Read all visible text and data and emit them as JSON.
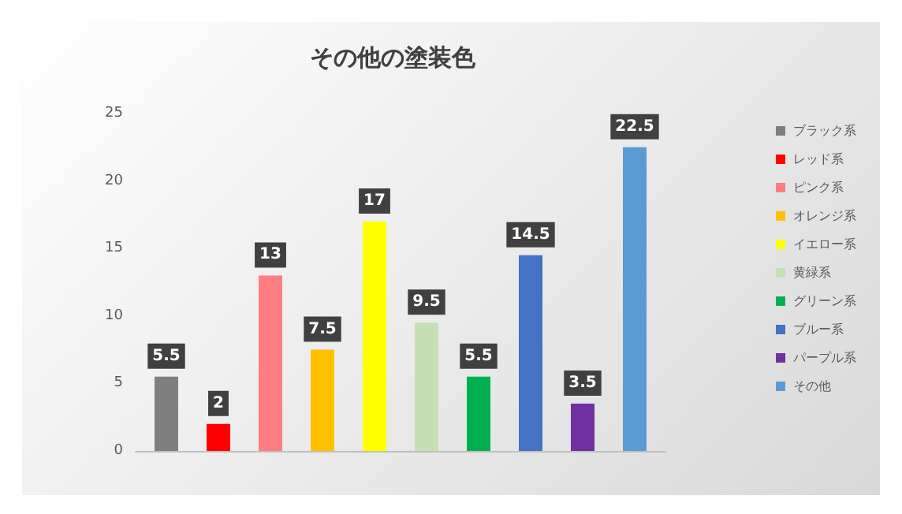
{
  "chart_data": {
    "type": "bar",
    "title": "その他の塗装色",
    "categories": [
      null
    ],
    "series": [
      {
        "name": "ブラック系",
        "color": "#7f7f7f",
        "values": [
          5.5
        ]
      },
      {
        "name": "レッド系",
        "color": "#ff0000",
        "values": [
          2
        ]
      },
      {
        "name": "ピンク系",
        "color": "#ff7c80",
        "values": [
          13
        ]
      },
      {
        "name": "オレンジ系",
        "color": "#ffc000",
        "values": [
          7.5
        ]
      },
      {
        "name": "イエロー系",
        "color": "#ffff00",
        "values": [
          17
        ]
      },
      {
        "name": "黄緑系",
        "color": "#c5e0b4",
        "values": [
          9.5
        ]
      },
      {
        "name": "グリーン系",
        "color": "#00b050",
        "values": [
          5.5
        ]
      },
      {
        "name": "ブルー系",
        "color": "#4472c4",
        "values": [
          14.5
        ]
      },
      {
        "name": "パープル系",
        "color": "#7030a0",
        "values": [
          3.5
        ]
      },
      {
        "name": "その他",
        "color": "#5b9bd5",
        "values": [
          22.5
        ]
      }
    ],
    "ylim": [
      0,
      25
    ],
    "yticks": [
      0,
      5,
      10,
      15,
      20,
      25
    ],
    "grid": false,
    "legend": "right",
    "data_labels": true
  }
}
